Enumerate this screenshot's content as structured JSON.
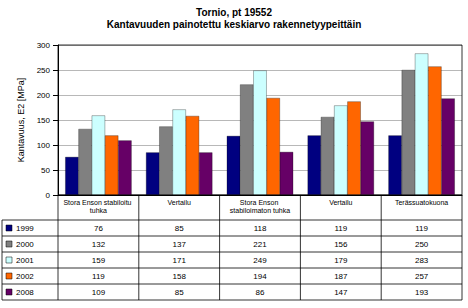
{
  "chart_data": {
    "type": "bar",
    "title": "Tornio, pt 19552",
    "subtitle": "Kantavuuden painotettu keskiarvo rakennetyypeittäin",
    "y_label": "Kantavuus, E2 [MPa]",
    "categories": [
      "Stora Enson stabiloitu tuhka",
      "Vertailu",
      "Stora Enson stabiloimaton tuhka",
      "Vertailu",
      "Terässuatokuona"
    ],
    "series": [
      {
        "name": "1999",
        "color": "#000080",
        "values": [
          76,
          85,
          118,
          119,
          119
        ]
      },
      {
        "name": "2000",
        "color": "#808080",
        "values": [
          132,
          137,
          221,
          156,
          250
        ]
      },
      {
        "name": "2001",
        "color": "#ccffff",
        "values": [
          159,
          171,
          249,
          179,
          283
        ]
      },
      {
        "name": "2002",
        "color": "#ff6600",
        "values": [
          119,
          158,
          194,
          187,
          257
        ]
      },
      {
        "name": "2008",
        "color": "#660066",
        "values": [
          109,
          85,
          86,
          147,
          193
        ]
      }
    ],
    "ylim": [
      0,
      300
    ],
    "yticks": [
      0,
      50,
      100,
      150,
      200,
      250,
      300
    ],
    "grid": true
  }
}
